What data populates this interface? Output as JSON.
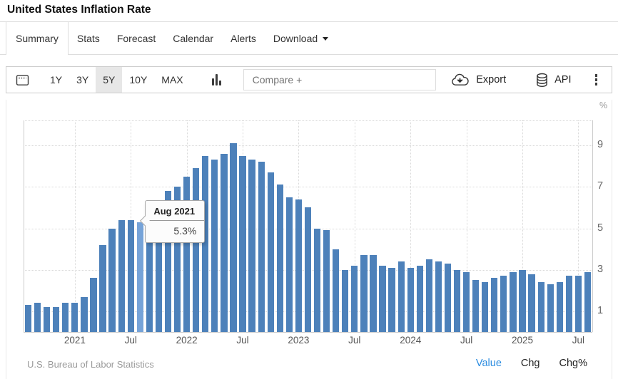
{
  "page": {
    "title": "United States Inflation Rate"
  },
  "tabs": [
    {
      "label": "Summary",
      "active": true
    },
    {
      "label": "Stats",
      "active": false
    },
    {
      "label": "Forecast",
      "active": false
    },
    {
      "label": "Calendar",
      "active": false
    },
    {
      "label": "Alerts",
      "active": false
    },
    {
      "label": "Download",
      "active": false,
      "has_caret": true
    }
  ],
  "toolbar": {
    "ranges": [
      "1Y",
      "3Y",
      "5Y",
      "10Y",
      "MAX"
    ],
    "active_range": "5Y",
    "compare_placeholder": "Compare +",
    "export_label": "Export",
    "api_label": "API",
    "icons": [
      "calendar-icon",
      "bar-chart-icon",
      "cloud-download-icon",
      "database-icon",
      "kebab-menu-icon"
    ]
  },
  "chart_data": {
    "type": "bar",
    "title": "United States Inflation Rate",
    "xlabel": "",
    "ylabel": "%",
    "unit": "%",
    "ylim": [
      0,
      10.2
    ],
    "grid": true,
    "y_axis_side": "right",
    "categories": [
      "Aug 2020",
      "Sep 2020",
      "Oct 2020",
      "Nov 2020",
      "Dec 2020",
      "Jan 2021",
      "Feb 2021",
      "Mar 2021",
      "Apr 2021",
      "May 2021",
      "Jun 2021",
      "Jul 2021",
      "Aug 2021",
      "Sep 2021",
      "Oct 2021",
      "Nov 2021",
      "Dec 2021",
      "Jan 2022",
      "Feb 2022",
      "Mar 2022",
      "Apr 2022",
      "May 2022",
      "Jun 2022",
      "Jul 2022",
      "Aug 2022",
      "Sep 2022",
      "Oct 2022",
      "Nov 2022",
      "Dec 2022",
      "Jan 2023",
      "Feb 2023",
      "Mar 2023",
      "Apr 2023",
      "May 2023",
      "Jun 2023",
      "Jul 2023",
      "Aug 2023",
      "Sep 2023",
      "Oct 2023",
      "Nov 2023",
      "Dec 2023",
      "Jan 2024",
      "Feb 2024",
      "Mar 2024",
      "Apr 2024",
      "May 2024",
      "Jun 2024",
      "Jul 2024",
      "Aug 2024",
      "Sep 2024",
      "Oct 2024",
      "Nov 2024",
      "Dec 2024",
      "Jan 2025",
      "Feb 2025",
      "Mar 2025",
      "Apr 2025",
      "May 2025",
      "Jun 2025",
      "Jul 2025",
      "Aug 2025"
    ],
    "values": [
      1.3,
      1.4,
      1.2,
      1.2,
      1.4,
      1.4,
      1.7,
      2.6,
      4.2,
      5.0,
      5.4,
      5.4,
      5.3,
      5.4,
      6.2,
      6.8,
      7.0,
      7.5,
      7.9,
      8.5,
      8.3,
      8.6,
      9.1,
      8.5,
      8.3,
      8.2,
      7.7,
      7.1,
      6.5,
      6.4,
      6.0,
      5.0,
      4.9,
      4.0,
      3.0,
      3.2,
      3.7,
      3.7,
      3.2,
      3.1,
      3.4,
      3.1,
      3.2,
      3.5,
      3.4,
      3.3,
      3.0,
      2.9,
      2.5,
      2.4,
      2.6,
      2.7,
      2.9,
      3.0,
      2.8,
      2.4,
      2.3,
      2.4,
      2.7,
      2.7,
      2.9
    ],
    "highlight_index": 12,
    "tooltip": {
      "title": "Aug 2021",
      "value": "5.3%"
    },
    "x_ticks": [
      {
        "index": 5,
        "label": "2021"
      },
      {
        "index": 11,
        "label": "Jul"
      },
      {
        "index": 17,
        "label": "2022"
      },
      {
        "index": 23,
        "label": "Jul"
      },
      {
        "index": 29,
        "label": "2023"
      },
      {
        "index": 35,
        "label": "Jul"
      },
      {
        "index": 41,
        "label": "2024"
      },
      {
        "index": 47,
        "label": "Jul"
      },
      {
        "index": 53,
        "label": "2025"
      },
      {
        "index": 59,
        "label": "Jul"
      }
    ],
    "y_ticks": [
      9,
      7,
      5,
      3,
      1
    ],
    "bar_color": "#4d81ba",
    "highlight_color": "#76a3d8"
  },
  "footer": {
    "source": "U.S. Bureau of Labor Statistics",
    "links": [
      {
        "label": "Value",
        "active": true
      },
      {
        "label": "Chg",
        "active": false
      },
      {
        "label": "Chg%",
        "active": false
      }
    ]
  }
}
